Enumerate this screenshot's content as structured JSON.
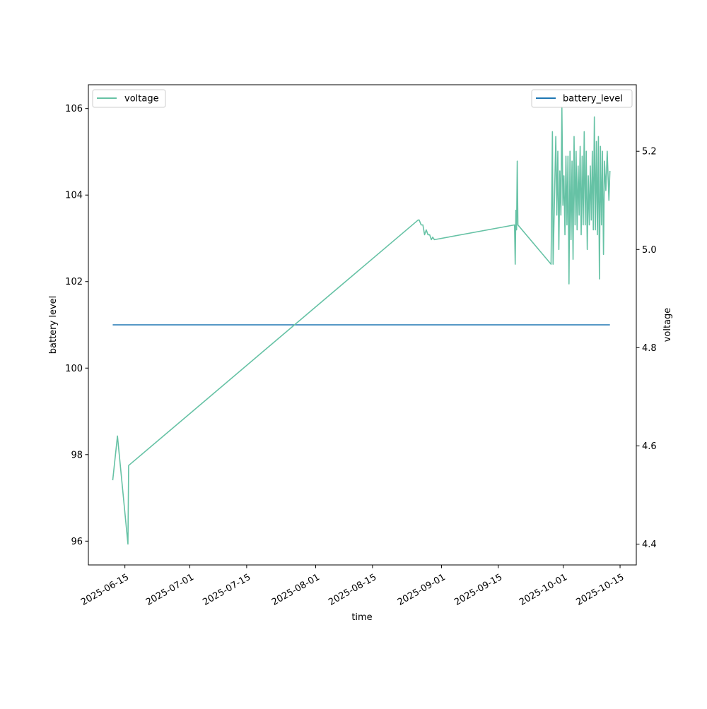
{
  "chart_data": {
    "type": "line",
    "xlabel": "time",
    "ylabel_left": "battery level",
    "ylabel_right": "voltage",
    "x_range": [
      "2025-06-06",
      "2025-10-19"
    ],
    "ylim_left": [
      95.45,
      106.55
    ],
    "ylim_right": [
      4.3575,
      5.3355
    ],
    "grid": false,
    "x_ticks": [
      "2025-06-15",
      "2025-07-01",
      "2025-07-15",
      "2025-08-01",
      "2025-08-15",
      "2025-09-01",
      "2025-09-15",
      "2025-10-01",
      "2025-10-15"
    ],
    "y_ticks_left": [
      96,
      98,
      100,
      102,
      104,
      106
    ],
    "y_ticks_right": [
      "4.4",
      "4.6",
      "4.8",
      "5.0",
      "5.2"
    ],
    "legends": [
      {
        "label": "voltage",
        "position": "top-left",
        "color": "#66c2a5"
      },
      {
        "label": "battery_level",
        "position": "top-right",
        "color": "#1f77b4"
      }
    ],
    "series": [
      {
        "name": "battery_level",
        "axis": "left",
        "color": "#1f77b4",
        "points": [
          [
            "2025-06-12T00:00",
            101
          ],
          [
            "2025-10-12T12:00",
            101
          ]
        ]
      },
      {
        "name": "voltage",
        "axis": "right",
        "color": "#66c2a5",
        "points": [
          [
            "2025-06-12T00:00",
            4.53
          ],
          [
            "2025-06-13T04:00",
            4.62
          ],
          [
            "2025-06-15T18:00",
            4.4
          ],
          [
            "2025-06-15T22:00",
            4.56
          ],
          [
            "2025-08-26T06:00",
            5.06
          ],
          [
            "2025-08-26T12:00",
            5.06
          ],
          [
            "2025-08-27T00:00",
            5.05
          ],
          [
            "2025-08-27T10:00",
            5.05
          ],
          [
            "2025-08-27T20:00",
            5.03
          ],
          [
            "2025-08-28T06:00",
            5.04
          ],
          [
            "2025-08-28T16:00",
            5.03
          ],
          [
            "2025-08-29T02:00",
            5.03
          ],
          [
            "2025-08-29T12:00",
            5.02
          ],
          [
            "2025-08-29T20:00",
            5.025
          ],
          [
            "2025-08-30T06:00",
            5.02
          ],
          [
            "2025-09-19T00:00",
            5.05
          ],
          [
            "2025-09-19T04:00",
            4.97
          ],
          [
            "2025-09-19T08:00",
            5.08
          ],
          [
            "2025-09-19T12:00",
            5.04
          ],
          [
            "2025-09-19T16:00",
            5.18
          ],
          [
            "2025-09-19T20:00",
            5.05
          ],
          [
            "2025-09-28T00:00",
            4.97
          ],
          [
            "2025-09-28T08:00",
            5.24
          ],
          [
            "2025-09-28T12:00",
            4.97
          ],
          [
            "2025-09-28T20:00",
            5.1
          ],
          [
            "2025-09-29T04:00",
            5.23
          ],
          [
            "2025-09-29T10:00",
            5.07
          ],
          [
            "2025-09-29T16:00",
            5.2
          ],
          [
            "2025-09-29T22:00",
            5.0
          ],
          [
            "2025-09-30T04:00",
            5.16
          ],
          [
            "2025-09-30T10:00",
            5.07
          ],
          [
            "2025-09-30T16:00",
            5.29
          ],
          [
            "2025-09-30T22:00",
            5.09
          ],
          [
            "2025-10-01T04:00",
            5.15
          ],
          [
            "2025-10-01T10:00",
            5.03
          ],
          [
            "2025-10-01T16:00",
            5.19
          ],
          [
            "2025-10-01T22:00",
            5.05
          ],
          [
            "2025-10-02T04:00",
            5.19
          ],
          [
            "2025-10-02T10:00",
            4.93
          ],
          [
            "2025-10-02T16:00",
            5.2
          ],
          [
            "2025-10-02T22:00",
            5.02
          ],
          [
            "2025-10-03T04:00",
            5.18
          ],
          [
            "2025-10-03T10:00",
            4.98
          ],
          [
            "2025-10-03T16:00",
            5.23
          ],
          [
            "2025-10-03T22:00",
            5.05
          ],
          [
            "2025-10-04T04:00",
            5.2
          ],
          [
            "2025-10-04T10:00",
            5.04
          ],
          [
            "2025-10-04T16:00",
            5.17
          ],
          [
            "2025-10-04T22:00",
            5.07
          ],
          [
            "2025-10-05T04:00",
            5.21
          ],
          [
            "2025-10-05T10:00",
            5.03
          ],
          [
            "2025-10-05T16:00",
            5.19
          ],
          [
            "2025-10-05T22:00",
            5.05
          ],
          [
            "2025-10-06T04:00",
            5.24
          ],
          [
            "2025-10-06T10:00",
            5.05
          ],
          [
            "2025-10-06T16:00",
            5.2
          ],
          [
            "2025-10-06T22:00",
            5.0
          ],
          [
            "2025-10-07T04:00",
            5.15
          ],
          [
            "2025-10-07T10:00",
            5.05
          ],
          [
            "2025-10-07T16:00",
            5.17
          ],
          [
            "2025-10-07T22:00",
            5.06
          ],
          [
            "2025-10-08T04:00",
            5.2
          ],
          [
            "2025-10-08T10:00",
            5.04
          ],
          [
            "2025-10-08T16:00",
            5.27
          ],
          [
            "2025-10-08T22:00",
            5.04
          ],
          [
            "2025-10-09T04:00",
            5.22
          ],
          [
            "2025-10-09T10:00",
            5.03
          ],
          [
            "2025-10-09T16:00",
            5.23
          ],
          [
            "2025-10-09T22:00",
            4.94
          ],
          [
            "2025-10-10T04:00",
            5.21
          ],
          [
            "2025-10-10T10:00",
            5.05
          ],
          [
            "2025-10-10T16:00",
            5.2
          ],
          [
            "2025-10-10T22:00",
            4.99
          ],
          [
            "2025-10-11T04:00",
            5.18
          ],
          [
            "2025-10-11T12:00",
            5.12
          ],
          [
            "2025-10-11T20:00",
            5.2
          ],
          [
            "2025-10-12T06:00",
            5.1
          ],
          [
            "2025-10-12T12:00",
            5.16
          ]
        ]
      }
    ]
  }
}
